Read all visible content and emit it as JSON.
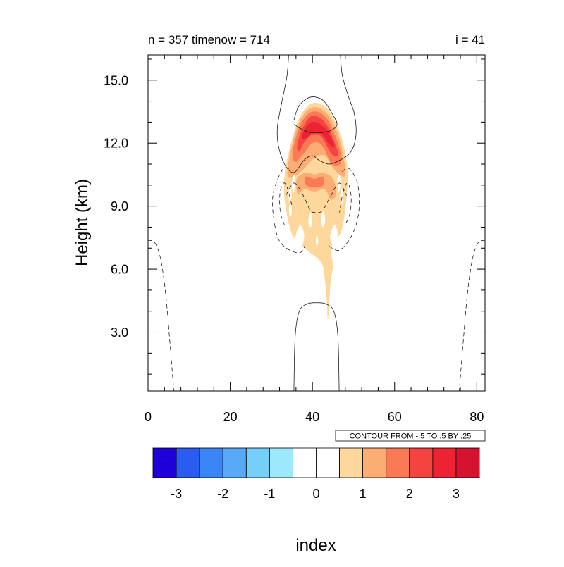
{
  "chart_data": {
    "type": "contour",
    "title_left": "n = 357 timenow = 714",
    "title_right": "i = 41",
    "xlabel": "index",
    "ylabel": "Height (km)",
    "xlim": [
      0,
      82
    ],
    "ylim": [
      0.2,
      16.2
    ],
    "x_ticks": [
      0,
      20,
      40,
      60,
      80
    ],
    "x_tick_labels": [
      "0",
      "20",
      "40",
      "60",
      "80"
    ],
    "y_ticks": [
      3,
      6,
      9,
      12,
      15
    ],
    "y_tick_labels": [
      "3.0",
      "6.0",
      "9.0",
      "12.0",
      "15.0"
    ],
    "x_minor_step": 4,
    "y_minor_step": 1,
    "contour_info": "CONTOUR FROM -.5 TO .5 BY .25",
    "colorbar": {
      "levels": [
        -3.5,
        -3,
        -2.5,
        -2,
        -1.5,
        -1,
        -0.5,
        0,
        0.5,
        1,
        1.5,
        2,
        2.5,
        3,
        3.5
      ],
      "colors": [
        "#1f00db",
        "#2a5cf0",
        "#3a86f4",
        "#58aaf6",
        "#76cff9",
        "#9ee8fc",
        "#ffffff",
        "#ffffff",
        "#fdd79c",
        "#fcad73",
        "#f97a55",
        "#f4443f",
        "#ed2233",
        "#d5132e"
      ],
      "tick_values": [
        -3,
        -2,
        -1,
        0,
        1,
        2,
        3
      ],
      "tick_labels": [
        "-3",
        "-2",
        "-1",
        "0",
        "1",
        "2",
        "3"
      ]
    },
    "filled_regions": [
      {
        "level": 0.5,
        "color": "#fdd79c",
        "points": [
          [
            43.8,
            3.6
          ],
          [
            43.5,
            4.5
          ],
          [
            43.0,
            5.5
          ],
          [
            42.2,
            6.3
          ],
          [
            38.7,
            6.9
          ],
          [
            35.2,
            7.6
          ],
          [
            33.3,
            9.2
          ],
          [
            33.2,
            10.4
          ],
          [
            34.3,
            11.6
          ],
          [
            36.8,
            13.2
          ],
          [
            40.0,
            13.9
          ],
          [
            43.8,
            13.6
          ],
          [
            47.0,
            12.3
          ],
          [
            48.5,
            10.8
          ],
          [
            48.2,
            9.2
          ],
          [
            47.0,
            7.8
          ],
          [
            44.5,
            7.0
          ],
          [
            45.0,
            6.2
          ],
          [
            44.4,
            5.3
          ]
        ]
      },
      {
        "level": 1.0,
        "color": "#fcad73",
        "points": [
          [
            33.9,
            10.5
          ],
          [
            34.9,
            11.8
          ],
          [
            37.0,
            13.1
          ],
          [
            40.0,
            13.7
          ],
          [
            43.6,
            13.4
          ],
          [
            46.6,
            12.2
          ],
          [
            48.0,
            10.5
          ],
          [
            45.5,
            10.7
          ],
          [
            43.0,
            11.4
          ],
          [
            40.5,
            11.3
          ],
          [
            38.0,
            10.8
          ],
          [
            35.5,
            10.4
          ]
        ]
      },
      {
        "level": 1.0,
        "color": "#fcad73",
        "points": [
          [
            36.2,
            10.3
          ],
          [
            38.5,
            10.6
          ],
          [
            40.5,
            10.5
          ],
          [
            42.5,
            10.6
          ],
          [
            45.0,
            10.3
          ],
          [
            45.8,
            9.6
          ],
          [
            44.5,
            9.3
          ],
          [
            43.0,
            9.8
          ],
          [
            40.5,
            9.7
          ],
          [
            38.0,
            9.8
          ],
          [
            36.4,
            9.6
          ]
        ]
      },
      {
        "level": 1.5,
        "color": "#f97a55",
        "points": [
          [
            35.2,
            11.6
          ],
          [
            37.1,
            12.9
          ],
          [
            40.0,
            13.5
          ],
          [
            43.4,
            13.2
          ],
          [
            46.2,
            12.0
          ],
          [
            47.0,
            11.1
          ],
          [
            44.8,
            11.0
          ],
          [
            42.3,
            11.9
          ],
          [
            40.0,
            12.0
          ],
          [
            37.8,
            11.5
          ],
          [
            35.9,
            11.1
          ]
        ]
      },
      {
        "level": 1.5,
        "color": "#f97a55",
        "points": [
          [
            38.3,
            10.4
          ],
          [
            40.5,
            10.3
          ],
          [
            42.5,
            10.4
          ],
          [
            42.7,
            10.0
          ],
          [
            40.5,
            9.9
          ],
          [
            38.5,
            10.0
          ]
        ]
      },
      {
        "level": 2.0,
        "color": "#f4443f",
        "points": [
          [
            36.3,
            11.9
          ],
          [
            37.8,
            12.8
          ],
          [
            40.0,
            13.3
          ],
          [
            43.0,
            13.0
          ],
          [
            45.5,
            12.0
          ],
          [
            46.2,
            11.4
          ],
          [
            44.6,
            11.5
          ],
          [
            42.2,
            12.3
          ],
          [
            40.0,
            12.4
          ],
          [
            37.9,
            12.0
          ],
          [
            36.8,
            11.6
          ]
        ]
      },
      {
        "level": 2.5,
        "color": "#ed2233",
        "points": [
          [
            37.4,
            12.3
          ],
          [
            39.0,
            12.9
          ],
          [
            41.0,
            13.0
          ],
          [
            43.5,
            12.6
          ],
          [
            45.3,
            11.9
          ],
          [
            44.3,
            11.9
          ],
          [
            42.0,
            12.5
          ],
          [
            40.0,
            12.5
          ],
          [
            38.2,
            12.2
          ]
        ]
      },
      {
        "level": 0.0,
        "color": "#ffffff",
        "points": [
          [
            35.0,
            10.1
          ],
          [
            35.6,
            10.5
          ],
          [
            35.8,
            10.0
          ],
          [
            35.3,
            9.6
          ]
        ]
      },
      {
        "level": 0.0,
        "color": "#ffffff",
        "points": [
          [
            46.0,
            10.2
          ],
          [
            46.5,
            10.5
          ],
          [
            46.9,
            10.1
          ],
          [
            46.4,
            9.7
          ]
        ]
      },
      {
        "level": 0.0,
        "color": "#ffffff",
        "points": [
          [
            34.2,
            9.7
          ],
          [
            34.7,
            9.9
          ],
          [
            34.9,
            9.4
          ],
          [
            34.4,
            9.2
          ]
        ]
      },
      {
        "level": 0.0,
        "color": "#ffffff",
        "points": [
          [
            46.8,
            9.6
          ],
          [
            47.3,
            9.8
          ],
          [
            47.5,
            9.3
          ],
          [
            47.0,
            9.1
          ]
        ]
      },
      {
        "level": 0.0,
        "color": "#ffffff",
        "points": [
          [
            35.8,
            7.4
          ],
          [
            37.0,
            8.1
          ],
          [
            38.0,
            7.6
          ],
          [
            37.2,
            7.0
          ]
        ]
      },
      {
        "level": 0.0,
        "color": "#ffffff",
        "points": [
          [
            44.3,
            7.5
          ],
          [
            45.3,
            8.1
          ],
          [
            46.2,
            7.7
          ],
          [
            45.4,
            7.1
          ]
        ]
      },
      {
        "level": 0.0,
        "color": "#ffffff",
        "points": [
          [
            39.0,
            8.3
          ],
          [
            39.6,
            8.7
          ],
          [
            40.0,
            8.2
          ],
          [
            39.4,
            8.0
          ]
        ]
      },
      {
        "level": 0.0,
        "color": "#ffffff",
        "points": [
          [
            42.1,
            8.4
          ],
          [
            42.7,
            8.8
          ],
          [
            43.1,
            8.3
          ],
          [
            42.5,
            8.0
          ]
        ]
      },
      {
        "level": 0.0,
        "color": "#ffffff",
        "points": [
          [
            40.8,
            7.4
          ],
          [
            41.2,
            7.6
          ],
          [
            41.4,
            7.3
          ],
          [
            41.0,
            7.1
          ]
        ]
      },
      {
        "level": 0.0,
        "color": "#ffffff",
        "points": [
          [
            34.3,
            8.9
          ],
          [
            34.8,
            9.1
          ],
          [
            35.0,
            8.7
          ],
          [
            34.5,
            8.5
          ]
        ]
      }
    ],
    "contour_lines": [
      {
        "level": 0.25,
        "dashed": false,
        "points": [
          [
            35.5,
            0.2
          ],
          [
            35.8,
            2.8
          ],
          [
            36.8,
            4.0
          ],
          [
            38.8,
            4.35
          ],
          [
            41.0,
            4.4
          ],
          [
            43.2,
            4.35
          ],
          [
            45.2,
            4.0
          ],
          [
            46.2,
            2.8
          ],
          [
            46.5,
            0.2
          ]
        ]
      },
      {
        "level": 0.25,
        "dashed": false,
        "points": [
          [
            34.2,
            16.2
          ],
          [
            33.8,
            15.2
          ],
          [
            32.6,
            14.0
          ],
          [
            31.5,
            12.8
          ],
          [
            31.7,
            11.9
          ],
          [
            33.2,
            11.0
          ],
          [
            35.5,
            10.6
          ],
          [
            38.0,
            11.2
          ],
          [
            40.0,
            11.4
          ],
          [
            41.5,
            11.2
          ],
          [
            44.0,
            11.0
          ],
          [
            46.8,
            11.2
          ],
          [
            49.4,
            11.6
          ],
          [
            50.6,
            12.4
          ],
          [
            50.2,
            13.4
          ],
          [
            48.8,
            14.2
          ],
          [
            47.3,
            15.2
          ],
          [
            46.8,
            16.2
          ]
        ]
      },
      {
        "level": 0.5,
        "dashed": false,
        "points": [
          [
            35.5,
            13.1
          ],
          [
            36.5,
            13.7
          ],
          [
            38.5,
            14.1
          ],
          [
            40.5,
            14.2
          ],
          [
            42.8,
            14.0
          ],
          [
            44.8,
            13.4
          ],
          [
            46.0,
            12.9
          ],
          [
            44.5,
            12.6
          ],
          [
            42.0,
            12.5
          ],
          [
            39.5,
            12.5
          ],
          [
            37.0,
            12.7
          ],
          [
            35.6,
            12.9
          ]
        ]
      },
      {
        "level": -0.25,
        "dashed": true,
        "points": [
          [
            38.3,
            7.2
          ],
          [
            37.2,
            6.8
          ],
          [
            34.5,
            6.9
          ],
          [
            31.8,
            7.4
          ],
          [
            30.6,
            8.4
          ],
          [
            30.3,
            9.3
          ],
          [
            31.0,
            10.0
          ],
          [
            33.0,
            10.8
          ],
          [
            35.2,
            10.7
          ]
        ]
      },
      {
        "level": -0.25,
        "dashed": true,
        "points": [
          [
            44.0,
            7.1
          ],
          [
            46.5,
            6.9
          ],
          [
            49.3,
            7.5
          ],
          [
            51.0,
            8.4
          ],
          [
            51.4,
            9.3
          ],
          [
            50.8,
            10.2
          ],
          [
            48.8,
            10.8
          ],
          [
            47.0,
            10.6
          ]
        ]
      },
      {
        "level": -0.5,
        "dashed": true,
        "points": [
          [
            33.2,
            8.1
          ],
          [
            32.2,
            8.7
          ],
          [
            32.1,
            9.6
          ],
          [
            33.0,
            10.1
          ],
          [
            34.0,
            9.8
          ],
          [
            35.3,
            8.8
          ]
        ]
      },
      {
        "level": -0.5,
        "dashed": true,
        "points": [
          [
            48.2,
            8.2
          ],
          [
            49.2,
            8.7
          ],
          [
            49.4,
            9.5
          ],
          [
            48.6,
            10.1
          ],
          [
            47.5,
            9.7
          ],
          [
            46.6,
            8.7
          ]
        ]
      },
      {
        "level": -0.5,
        "dashed": true,
        "points": [
          [
            33.5,
            9.5
          ],
          [
            35.5,
            10.1
          ],
          [
            37.5,
            9.6
          ],
          [
            39.5,
            8.8
          ],
          [
            41.0,
            8.7
          ],
          [
            42.5,
            8.8
          ],
          [
            44.5,
            9.5
          ],
          [
            46.5,
            10.1
          ],
          [
            48.3,
            9.5
          ]
        ]
      },
      {
        "level": -0.25,
        "dashed": true,
        "points": [
          [
            0.0,
            7.35
          ],
          [
            1.5,
            7.3
          ],
          [
            2.8,
            6.7
          ],
          [
            3.8,
            5.6
          ],
          [
            4.6,
            4.2
          ],
          [
            5.2,
            2.8
          ],
          [
            5.7,
            1.6
          ],
          [
            6.1,
            0.6
          ],
          [
            6.3,
            0.2
          ]
        ]
      },
      {
        "level": -0.25,
        "dashed": true,
        "points": [
          [
            82.0,
            7.35
          ],
          [
            80.5,
            7.3
          ],
          [
            79.2,
            6.7
          ],
          [
            78.2,
            5.6
          ],
          [
            77.4,
            4.2
          ],
          [
            76.8,
            2.8
          ],
          [
            76.3,
            1.6
          ],
          [
            75.9,
            0.6
          ],
          [
            75.7,
            0.2
          ]
        ]
      }
    ]
  }
}
